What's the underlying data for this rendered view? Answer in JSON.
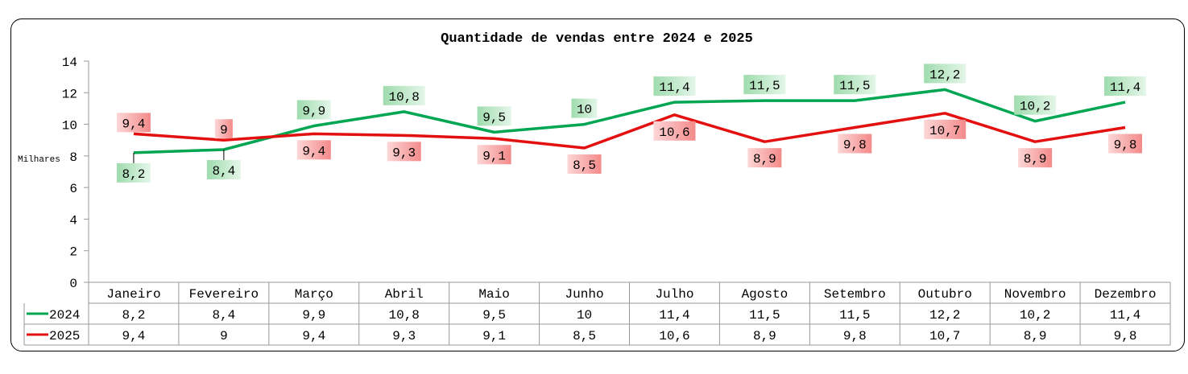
{
  "chart_data": {
    "type": "line",
    "title": "Quantidade de vendas entre 2024 e 2025",
    "ylabel": "Milhares",
    "ylim": [
      0,
      14
    ],
    "yticks": [
      0,
      2,
      4,
      6,
      8,
      10,
      12,
      14
    ],
    "grid": false,
    "legend": "data-table",
    "categories": [
      "Janeiro",
      "Fevereiro",
      "Março",
      "Abril",
      "Maio",
      "Junho",
      "Julho",
      "Agosto",
      "Setembro",
      "Outubro",
      "Novembro",
      "Dezembro"
    ],
    "series": [
      {
        "name": "2024",
        "color": "#00a651",
        "values": [
          8.2,
          8.4,
          9.9,
          10.8,
          9.5,
          10,
          11.4,
          11.5,
          11.5,
          12.2,
          10.2,
          11.4
        ],
        "labels": [
          "8,2",
          "8,4",
          "9,9",
          "10,8",
          "9,5",
          "10",
          "11,4",
          "11,5",
          "11,5",
          "12,2",
          "10,2",
          "11,4"
        ]
      },
      {
        "name": "2025",
        "color": "#e31010",
        "values": [
          9.4,
          9,
          9.4,
          9.3,
          9.1,
          8.5,
          10.6,
          8.9,
          9.8,
          10.7,
          8.9,
          9.8
        ],
        "labels": [
          "9,4",
          "9",
          "9,4",
          "9,3",
          "9,1",
          "8,5",
          "10,6",
          "8,9",
          "9,8",
          "10,7",
          "8,9",
          "9,8"
        ]
      }
    ]
  }
}
